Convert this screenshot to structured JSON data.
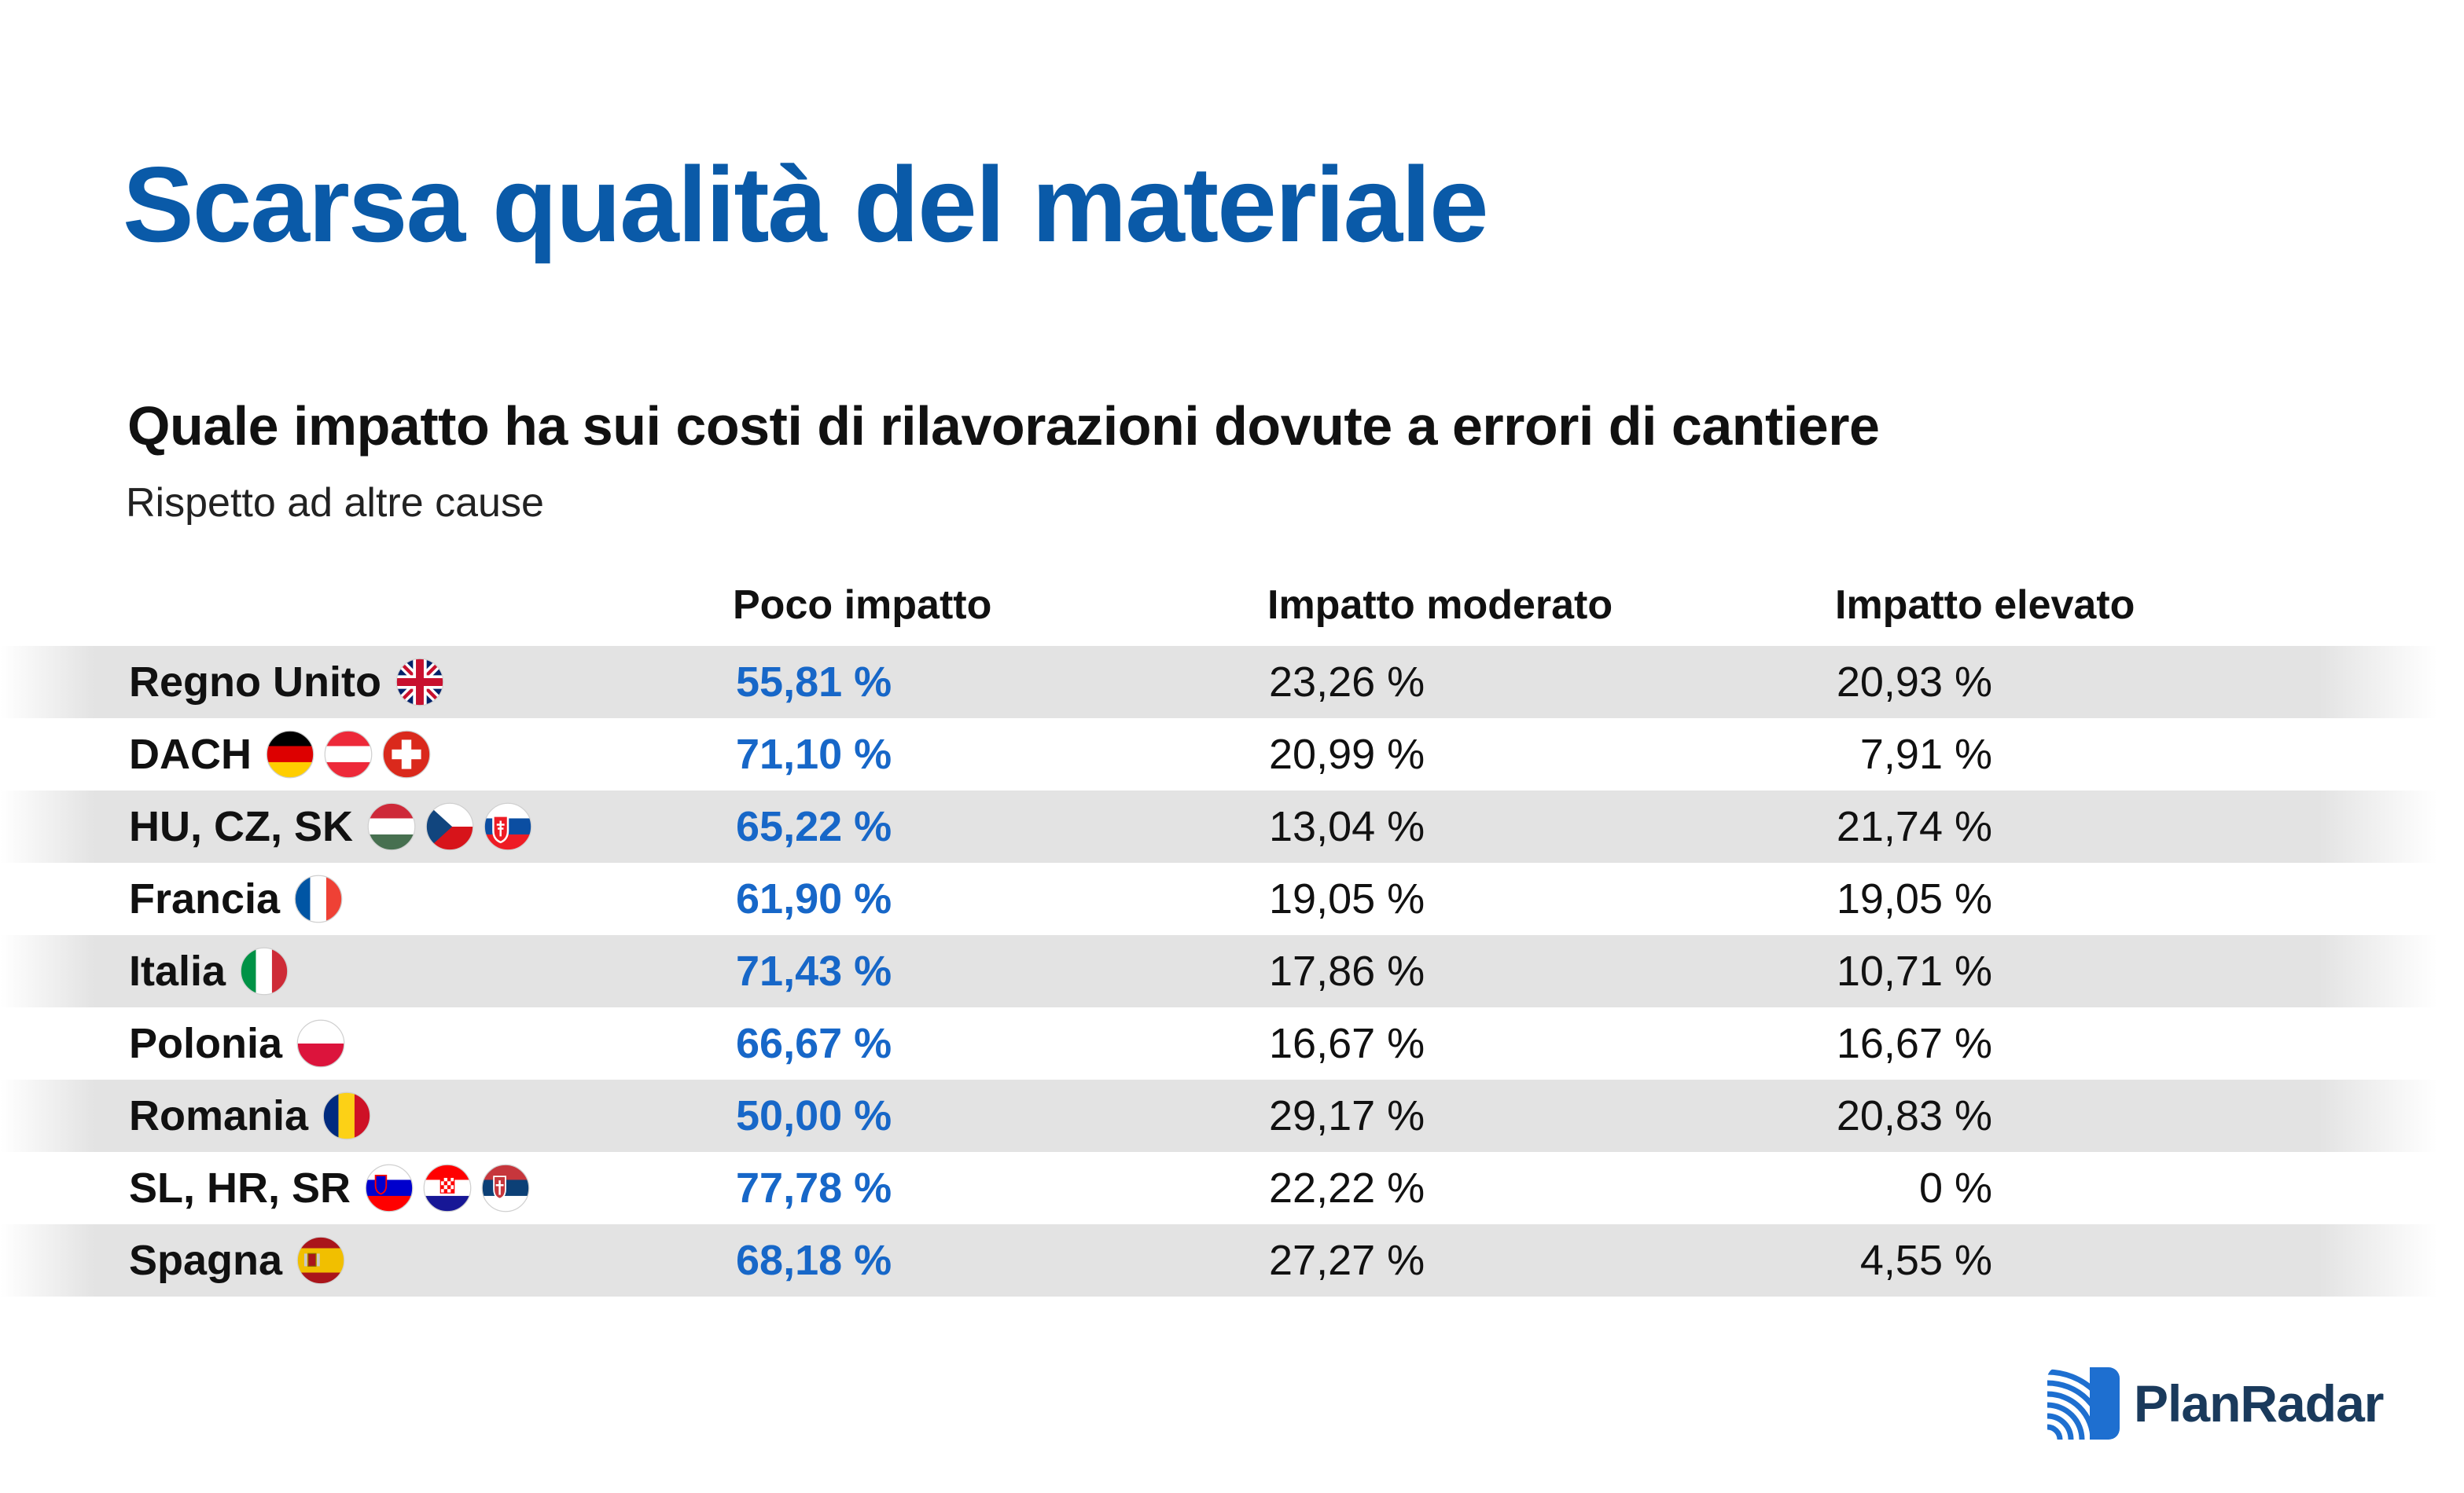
{
  "header": {
    "title": "Scarsa qualità del materiale",
    "subtitle": "Quale impatto ha sui costi di rilavorazioni dovute a errori di cantiere",
    "caption": "Rispetto ad altre cause"
  },
  "colors": {
    "title_blue": "#0a5aa8",
    "highlight_blue": "#1767c8",
    "row_shade": "#e3e3e3",
    "logo_blue": "#1e6fd0"
  },
  "chart_data": {
    "type": "table",
    "columns": [
      "Poco impatto",
      "Impatto moderato",
      "Impatto elevato"
    ],
    "rows": [
      {
        "label": "Regno Unito",
        "flags": [
          "gb"
        ],
        "values": [
          "55,81 %",
          "23,26 %",
          "20,93 %"
        ]
      },
      {
        "label": "DACH",
        "flags": [
          "de",
          "at",
          "ch"
        ],
        "values": [
          "71,10 %",
          "20,99 %",
          "7,91 %"
        ]
      },
      {
        "label": "HU, CZ, SK",
        "flags": [
          "hu",
          "cz",
          "sk"
        ],
        "values": [
          "65,22 %",
          "13,04 %",
          "21,74 %"
        ]
      },
      {
        "label": "Francia",
        "flags": [
          "fr"
        ],
        "values": [
          "61,90 %",
          "19,05 %",
          "19,05 %"
        ]
      },
      {
        "label": "Italia",
        "flags": [
          "it"
        ],
        "values": [
          "71,43 %",
          "17,86 %",
          "10,71 %"
        ]
      },
      {
        "label": "Polonia",
        "flags": [
          "pl"
        ],
        "values": [
          "66,67 %",
          "16,67 %",
          "16,67 %"
        ]
      },
      {
        "label": "Romania",
        "flags": [
          "ro"
        ],
        "values": [
          "50,00 %",
          "29,17 %",
          "20,83 %"
        ]
      },
      {
        "label": "SL, HR, SR",
        "flags": [
          "si",
          "hr",
          "rs"
        ],
        "values": [
          "77,78 %",
          "22,22 %",
          "0 %"
        ]
      },
      {
        "label": "Spagna",
        "flags": [
          "es"
        ],
        "values": [
          "68,18 %",
          "27,27 %",
          "4,55 %"
        ]
      }
    ]
  },
  "logo": {
    "text": "PlanRadar",
    "icon": "planradar-logo-icon"
  }
}
